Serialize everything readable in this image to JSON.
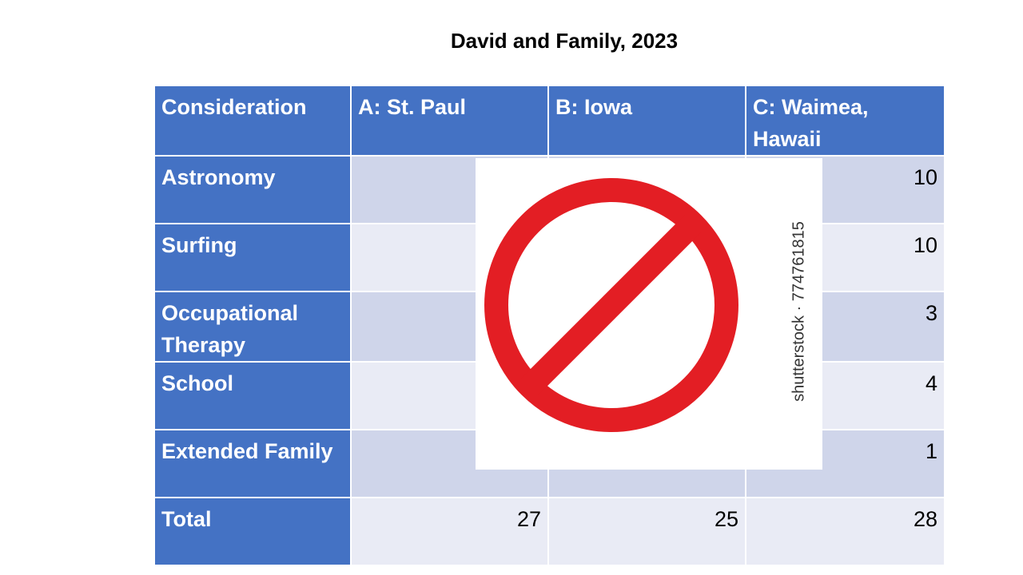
{
  "title": "David and Family, 2023",
  "table": {
    "headers": [
      "Consideration",
      "A: St. Paul",
      "B: Iowa",
      "C: Waimea, Hawaii"
    ],
    "rows": [
      {
        "label": "Astronomy",
        "a": "",
        "b": "",
        "c": "10"
      },
      {
        "label": "Surfing",
        "a": "",
        "b": "",
        "c": "10"
      },
      {
        "label": "Occupational Therapy",
        "a": "",
        "b": "",
        "c": "3"
      },
      {
        "label": "School",
        "a": "",
        "b": "",
        "c": "4"
      },
      {
        "label": "Extended Family",
        "a": "",
        "b": "",
        "c": "1"
      },
      {
        "label": "Total",
        "a": "27",
        "b": "25",
        "c": "28"
      }
    ]
  },
  "overlay": {
    "icon": "no-symbol-icon",
    "watermark": "shutterstock · 774761815",
    "icon_color": "#e31e24"
  }
}
